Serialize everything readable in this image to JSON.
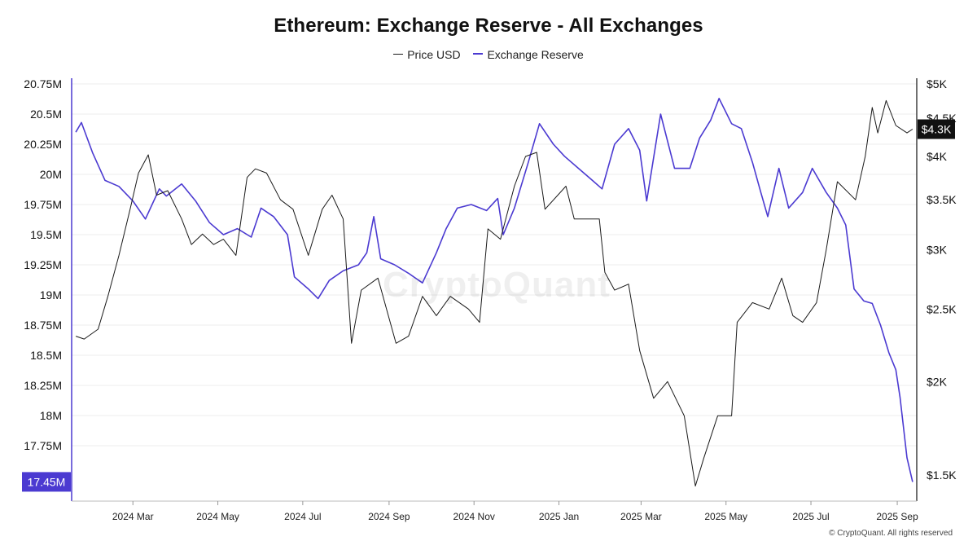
{
  "title": "Ethereum: Exchange Reserve - All Exchanges",
  "legend": {
    "price": "Price USD",
    "reserve": "Exchange Reserve"
  },
  "watermark": "CryptoQuant",
  "copyright": "© CryptoQuant. All rights reserved",
  "colors": {
    "price": "#1a1a1a",
    "reserve": "#4b3ad1",
    "badge_reserve": "#4b3ad1",
    "badge_price": "#111111"
  },
  "current": {
    "reserve_label": "17.45M",
    "price_label": "$4.3K"
  },
  "chart_data": {
    "type": "line",
    "title": "Ethereum: Exchange Reserve - All Exchanges",
    "x_ticks": [
      "2024 Mar",
      "2024 May",
      "2024 Jul",
      "2024 Sep",
      "2024 Nov",
      "2025 Jan",
      "2025 Mar",
      "2025 May",
      "2025 Jul",
      "2025 Sep"
    ],
    "y_left": {
      "ticks": [
        "20.75M",
        "20.5M",
        "20.25M",
        "20M",
        "19.75M",
        "19.5M",
        "19.25M",
        "19M",
        "18.75M",
        "18.5M",
        "18.25M",
        "18M",
        "17.75M"
      ],
      "range": [
        17.4,
        20.8
      ]
    },
    "y_right": {
      "ticks": [
        "$5K",
        "$4.5K",
        "$4K",
        "$3.5K",
        "$3K",
        "$2.5K",
        "$2K",
        "$1.5K"
      ],
      "range": [
        1400,
        5000
      ],
      "scale": "log"
    },
    "series": [
      {
        "name": "Exchange Reserve",
        "axis": "left",
        "unit": "M ETH",
        "points": [
          [
            "2024-01-20",
            20.35
          ],
          [
            "2024-01-24",
            20.43
          ],
          [
            "2024-02-01",
            20.18
          ],
          [
            "2024-02-10",
            19.95
          ],
          [
            "2024-02-20",
            19.9
          ],
          [
            "2024-03-01",
            19.78
          ],
          [
            "2024-03-10",
            19.63
          ],
          [
            "2024-03-20",
            19.88
          ],
          [
            "2024-03-25",
            19.82
          ],
          [
            "2024-04-05",
            19.92
          ],
          [
            "2024-04-15",
            19.78
          ],
          [
            "2024-04-25",
            19.6
          ],
          [
            "2024-05-05",
            19.5
          ],
          [
            "2024-05-15",
            19.55
          ],
          [
            "2024-05-25",
            19.48
          ],
          [
            "2024-06-01",
            19.72
          ],
          [
            "2024-06-10",
            19.65
          ],
          [
            "2024-06-20",
            19.5
          ],
          [
            "2024-06-25",
            19.15
          ],
          [
            "2024-07-05",
            19.05
          ],
          [
            "2024-07-12",
            18.97
          ],
          [
            "2024-07-20",
            19.12
          ],
          [
            "2024-07-30",
            19.2
          ],
          [
            "2024-08-10",
            19.25
          ],
          [
            "2024-08-16",
            19.35
          ],
          [
            "2024-08-21",
            19.65
          ],
          [
            "2024-08-26",
            19.3
          ],
          [
            "2024-09-05",
            19.25
          ],
          [
            "2024-09-15",
            19.18
          ],
          [
            "2024-09-25",
            19.1
          ],
          [
            "2024-10-05",
            19.35
          ],
          [
            "2024-10-12",
            19.55
          ],
          [
            "2024-10-20",
            19.72
          ],
          [
            "2024-10-30",
            19.75
          ],
          [
            "2024-11-10",
            19.7
          ],
          [
            "2024-11-18",
            19.8
          ],
          [
            "2024-11-22",
            19.5
          ],
          [
            "2024-11-30",
            19.72
          ],
          [
            "2024-12-10",
            20.1
          ],
          [
            "2024-12-18",
            20.42
          ],
          [
            "2024-12-28",
            20.25
          ],
          [
            "2025-01-05",
            20.15
          ],
          [
            "2025-01-15",
            20.05
          ],
          [
            "2025-01-25",
            19.95
          ],
          [
            "2025-02-01",
            19.88
          ],
          [
            "2025-02-10",
            20.25
          ],
          [
            "2025-02-20",
            20.38
          ],
          [
            "2025-02-28",
            20.2
          ],
          [
            "2025-03-05",
            19.78
          ],
          [
            "2025-03-15",
            20.5
          ],
          [
            "2025-03-25",
            20.05
          ],
          [
            "2025-04-05",
            20.05
          ],
          [
            "2025-04-12",
            20.3
          ],
          [
            "2025-04-20",
            20.45
          ],
          [
            "2025-04-26",
            20.63
          ],
          [
            "2025-05-05",
            20.42
          ],
          [
            "2025-05-12",
            20.38
          ],
          [
            "2025-05-20",
            20.1
          ],
          [
            "2025-05-26",
            19.85
          ],
          [
            "2025-05-31",
            19.65
          ],
          [
            "2025-06-08",
            20.05
          ],
          [
            "2025-06-15",
            19.72
          ],
          [
            "2025-06-25",
            19.85
          ],
          [
            "2025-07-02",
            20.05
          ],
          [
            "2025-07-12",
            19.85
          ],
          [
            "2025-07-20",
            19.72
          ],
          [
            "2025-07-26",
            19.58
          ],
          [
            "2025-08-01",
            19.05
          ],
          [
            "2025-08-08",
            18.95
          ],
          [
            "2025-08-14",
            18.93
          ],
          [
            "2025-08-20",
            18.75
          ],
          [
            "2025-08-26",
            18.52
          ],
          [
            "2025-08-31",
            18.38
          ],
          [
            "2025-09-03",
            18.15
          ],
          [
            "2025-09-08",
            17.65
          ],
          [
            "2025-09-12",
            17.45
          ]
        ]
      },
      {
        "name": "Price USD",
        "axis": "right",
        "unit": "USD",
        "points": [
          [
            "2024-01-20",
            2300
          ],
          [
            "2024-01-26",
            2280
          ],
          [
            "2024-02-05",
            2350
          ],
          [
            "2024-02-12",
            2600
          ],
          [
            "2024-02-20",
            2950
          ],
          [
            "2024-02-28",
            3400
          ],
          [
            "2024-03-05",
            3800
          ],
          [
            "2024-03-12",
            4020
          ],
          [
            "2024-03-18",
            3550
          ],
          [
            "2024-03-26",
            3600
          ],
          [
            "2024-04-05",
            3300
          ],
          [
            "2024-04-12",
            3050
          ],
          [
            "2024-04-20",
            3150
          ],
          [
            "2024-04-28",
            3050
          ],
          [
            "2024-05-05",
            3100
          ],
          [
            "2024-05-14",
            2950
          ],
          [
            "2024-05-22",
            3750
          ],
          [
            "2024-05-28",
            3850
          ],
          [
            "2024-06-05",
            3800
          ],
          [
            "2024-06-15",
            3500
          ],
          [
            "2024-06-24",
            3400
          ],
          [
            "2024-07-05",
            2950
          ],
          [
            "2024-07-15",
            3400
          ],
          [
            "2024-07-22",
            3550
          ],
          [
            "2024-07-30",
            3300
          ],
          [
            "2024-08-05",
            2250
          ],
          [
            "2024-08-12",
            2650
          ],
          [
            "2024-08-24",
            2750
          ],
          [
            "2024-09-06",
            2250
          ],
          [
            "2024-09-15",
            2300
          ],
          [
            "2024-09-25",
            2600
          ],
          [
            "2024-10-05",
            2450
          ],
          [
            "2024-10-15",
            2600
          ],
          [
            "2024-10-28",
            2500
          ],
          [
            "2024-11-05",
            2400
          ],
          [
            "2024-11-11",
            3200
          ],
          [
            "2024-11-20",
            3100
          ],
          [
            "2024-11-30",
            3650
          ],
          [
            "2024-12-08",
            4000
          ],
          [
            "2024-12-16",
            4050
          ],
          [
            "2024-12-22",
            3400
          ],
          [
            "2025-01-06",
            3650
          ],
          [
            "2025-01-12",
            3300
          ],
          [
            "2025-01-20",
            3300
          ],
          [
            "2025-01-30",
            3300
          ],
          [
            "2025-02-03",
            2800
          ],
          [
            "2025-02-10",
            2650
          ],
          [
            "2025-02-20",
            2700
          ],
          [
            "2025-02-28",
            2200
          ],
          [
            "2025-03-10",
            1900
          ],
          [
            "2025-03-20",
            2000
          ],
          [
            "2025-04-01",
            1800
          ],
          [
            "2025-04-09",
            1450
          ],
          [
            "2025-04-15",
            1580
          ],
          [
            "2025-04-25",
            1800
          ],
          [
            "2025-05-05",
            1800
          ],
          [
            "2025-05-09",
            2400
          ],
          [
            "2025-05-20",
            2550
          ],
          [
            "2025-06-01",
            2500
          ],
          [
            "2025-06-10",
            2750
          ],
          [
            "2025-06-18",
            2450
          ],
          [
            "2025-06-25",
            2400
          ],
          [
            "2025-07-05",
            2550
          ],
          [
            "2025-07-12",
            3000
          ],
          [
            "2025-07-20",
            3700
          ],
          [
            "2025-08-02",
            3500
          ],
          [
            "2025-08-09",
            4000
          ],
          [
            "2025-08-14",
            4650
          ],
          [
            "2025-08-18",
            4300
          ],
          [
            "2025-08-24",
            4750
          ],
          [
            "2025-08-31",
            4400
          ],
          [
            "2025-09-08",
            4300
          ],
          [
            "2025-09-12",
            4350
          ]
        ]
      }
    ]
  }
}
